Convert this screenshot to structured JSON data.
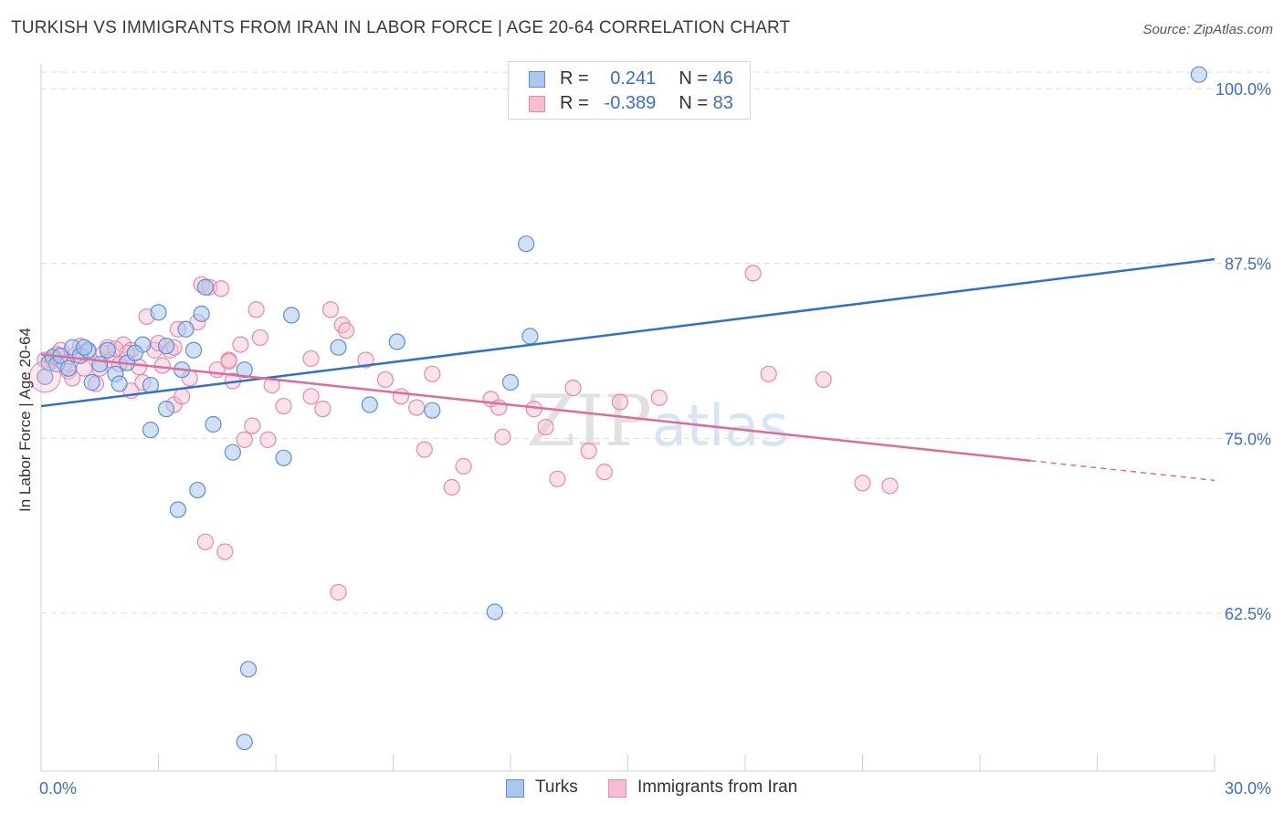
{
  "title": "TURKISH VS IMMIGRANTS FROM IRAN IN LABOR FORCE | AGE 20-64 CORRELATION CHART",
  "source": "Source: ZipAtlas.com",
  "watermark": "ZIPatlas",
  "legend_top": {
    "rows": [
      {
        "r_label": "R =",
        "r_value": "0.241",
        "n_label": "N =",
        "n_value": "46"
      },
      {
        "r_label": "R =",
        "r_value": "-0.389",
        "n_label": "N =",
        "n_value": "83"
      }
    ]
  },
  "legend_bottom": {
    "items": [
      "Turks",
      "Immigrants from Iran"
    ]
  },
  "colors": {
    "turks_fill": "#aac8ef",
    "turks_stroke": "#5d8fd6",
    "turks_line": "#2e6fd0",
    "iran_fill": "#f6bcd0",
    "iran_stroke": "#e58aab",
    "iran_line": "#e06a98",
    "tick_label": "#3b6fc4",
    "grid": "#dcdcdc"
  },
  "chart_data": {
    "type": "scatter",
    "title": "TURKISH VS IMMIGRANTS FROM IRAN IN LABOR FORCE | AGE 20-64 CORRELATION CHART",
    "xlabel": "",
    "ylabel": "In Labor Force | Age 20-64",
    "xlim": [
      0,
      30
    ],
    "ylim": [
      52.5,
      101.5
    ],
    "x_tick_labels": [
      "0.0%",
      "30.0%"
    ],
    "y_ticks": [
      62.5,
      75.0,
      87.5,
      100.0
    ],
    "y_tick_labels": [
      "62.5%",
      "75.0%",
      "87.5%",
      "100.0%"
    ],
    "grid": true,
    "legend_placement": "top-center",
    "series": [
      {
        "name": "Turks",
        "r": 0.241,
        "n": 46,
        "trend": {
          "x": [
            0,
            30
          ],
          "y": [
            77.3,
            87.8
          ]
        },
        "points": [
          [
            0.1,
            79.4
          ],
          [
            0.2,
            80.4
          ],
          [
            0.3,
            80.8
          ],
          [
            0.4,
            80.3
          ],
          [
            0.5,
            80.9
          ],
          [
            0.7,
            80.0
          ],
          [
            0.8,
            81.5
          ],
          [
            1.0,
            80.9
          ],
          [
            1.2,
            81.3
          ],
          [
            1.3,
            79.0
          ],
          [
            1.5,
            80.3
          ],
          [
            1.7,
            81.3
          ],
          [
            1.9,
            79.6
          ],
          [
            2.0,
            78.9
          ],
          [
            2.2,
            80.4
          ],
          [
            2.6,
            81.7
          ],
          [
            2.8,
            78.8
          ],
          [
            2.8,
            75.6
          ],
          [
            3.0,
            84.0
          ],
          [
            3.2,
            81.6
          ],
          [
            3.2,
            77.1
          ],
          [
            3.6,
            79.9
          ],
          [
            3.7,
            82.8
          ],
          [
            3.9,
            81.3
          ],
          [
            4.1,
            83.9
          ],
          [
            4.2,
            85.8
          ],
          [
            4.4,
            76.0
          ],
          [
            4.0,
            71.3
          ],
          [
            3.5,
            69.9
          ],
          [
            4.9,
            74.0
          ],
          [
            5.2,
            79.9
          ],
          [
            6.2,
            73.6
          ],
          [
            6.4,
            83.8
          ],
          [
            7.6,
            81.5
          ],
          [
            8.4,
            77.4
          ],
          [
            9.1,
            81.9
          ],
          [
            10.0,
            77.0
          ],
          [
            11.6,
            62.6
          ],
          [
            12.0,
            79.0
          ],
          [
            12.4,
            88.9
          ],
          [
            12.5,
            82.3
          ],
          [
            5.3,
            58.5
          ],
          [
            5.2,
            53.3
          ],
          [
            2.4,
            81.1
          ],
          [
            1.1,
            81.5
          ],
          [
            29.6,
            101.0
          ]
        ]
      },
      {
        "name": "Immigrants from Iran",
        "r": -0.389,
        "n": 83,
        "trend": {
          "x": [
            0,
            25.3
          ],
          "y": [
            81.0,
            73.4
          ]
        },
        "trend_dashed": {
          "x": [
            25.3,
            30
          ],
          "y": [
            73.4,
            72.0
          ]
        },
        "points": [
          [
            0.1,
            80.6
          ],
          [
            0.3,
            80.6
          ],
          [
            0.5,
            81.3
          ],
          [
            0.6,
            80.4
          ],
          [
            0.7,
            79.8
          ],
          [
            0.8,
            79.3
          ],
          [
            1.0,
            81.6
          ],
          [
            1.2,
            81.2
          ],
          [
            1.4,
            78.9
          ],
          [
            1.6,
            81.1
          ],
          [
            1.7,
            81.5
          ],
          [
            1.8,
            80.6
          ],
          [
            2.0,
            80.3
          ],
          [
            2.1,
            81.7
          ],
          [
            2.3,
            81.3
          ],
          [
            2.3,
            78.4
          ],
          [
            2.5,
            80.1
          ],
          [
            2.6,
            79.0
          ],
          [
            2.7,
            83.7
          ],
          [
            2.9,
            81.3
          ],
          [
            3.0,
            81.8
          ],
          [
            3.1,
            80.2
          ],
          [
            3.3,
            81.3
          ],
          [
            3.4,
            77.4
          ],
          [
            3.5,
            82.8
          ],
          [
            3.6,
            78.0
          ],
          [
            3.8,
            79.3
          ],
          [
            4.0,
            83.3
          ],
          [
            4.1,
            86.0
          ],
          [
            4.3,
            85.8
          ],
          [
            4.5,
            79.9
          ],
          [
            4.6,
            85.7
          ],
          [
            4.8,
            80.6
          ],
          [
            4.9,
            79.1
          ],
          [
            5.1,
            81.7
          ],
          [
            5.2,
            74.9
          ],
          [
            5.4,
            75.9
          ],
          [
            5.5,
            84.2
          ],
          [
            5.6,
            82.2
          ],
          [
            5.8,
            74.9
          ],
          [
            6.2,
            77.3
          ],
          [
            6.9,
            78.0
          ],
          [
            6.9,
            80.7
          ],
          [
            7.2,
            77.1
          ],
          [
            7.4,
            84.2
          ],
          [
            7.7,
            83.1
          ],
          [
            7.8,
            82.7
          ],
          [
            8.3,
            80.6
          ],
          [
            8.8,
            79.2
          ],
          [
            9.2,
            78.0
          ],
          [
            9.6,
            77.2
          ],
          [
            9.8,
            74.2
          ],
          [
            10.0,
            79.6
          ],
          [
            10.5,
            71.5
          ],
          [
            10.8,
            73.0
          ],
          [
            11.5,
            77.8
          ],
          [
            11.7,
            77.2
          ],
          [
            11.8,
            75.1
          ],
          [
            12.6,
            77.1
          ],
          [
            12.9,
            75.8
          ],
          [
            13.2,
            72.1
          ],
          [
            13.6,
            78.6
          ],
          [
            14.0,
            74.1
          ],
          [
            14.4,
            72.6
          ],
          [
            14.8,
            77.6
          ],
          [
            15.8,
            77.9
          ],
          [
            18.2,
            86.8
          ],
          [
            18.6,
            79.6
          ],
          [
            20.0,
            79.2
          ],
          [
            21.0,
            71.8
          ],
          [
            21.7,
            71.6
          ],
          [
            4.2,
            67.6
          ],
          [
            4.7,
            66.9
          ],
          [
            7.6,
            64.0
          ],
          [
            1.5,
            80.0
          ],
          [
            2.2,
            81.1
          ],
          [
            3.4,
            81.5
          ],
          [
            0.9,
            81.0
          ],
          [
            4.8,
            80.5
          ],
          [
            5.9,
            78.8
          ],
          [
            0.4,
            81.0
          ],
          [
            1.9,
            81.4
          ],
          [
            1.1,
            80.0
          ]
        ]
      }
    ]
  }
}
